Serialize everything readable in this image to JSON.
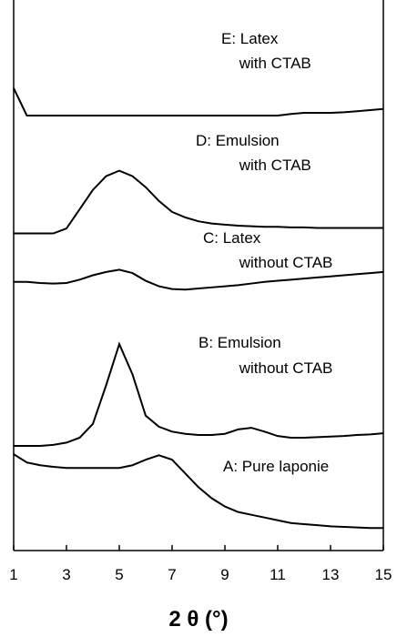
{
  "chart_data": {
    "type": "line",
    "xlabel": "2 θ (°)",
    "x": [
      1,
      1.5,
      2,
      2.5,
      3,
      3.5,
      4,
      4.5,
      5,
      5.5,
      6,
      6.5,
      7,
      7.5,
      8,
      8.5,
      9,
      9.5,
      10,
      10.5,
      11,
      11.5,
      12,
      12.5,
      13,
      13.5,
      14,
      14.5,
      15
    ],
    "xlim": [
      1,
      15
    ],
    "xticks": [
      1,
      3,
      5,
      7,
      9,
      11,
      13,
      15
    ],
    "ylim": [
      0,
      100
    ],
    "series": [
      {
        "name": "E: Latex with CTAB",
        "color": "#000000",
        "values": [
          84,
          79,
          79,
          79,
          79,
          79,
          79,
          79,
          79,
          79,
          79,
          79,
          79,
          79,
          79,
          79,
          79,
          79,
          79,
          79,
          79,
          79.3,
          79.5,
          79.5,
          79.5,
          79.6,
          79.8,
          80,
          80.2
        ]
      },
      {
        "name": "D: Emulsion with CTAB",
        "color": "#000000",
        "values": [
          57.6,
          57.6,
          57.6,
          57.6,
          58.5,
          62,
          65.5,
          68,
          69,
          68,
          66,
          63.5,
          61.5,
          60.5,
          59.8,
          59.4,
          59.2,
          59,
          58.9,
          58.8,
          58.8,
          58.7,
          58.7,
          58.6,
          58.6,
          58.6,
          58.6,
          58.6,
          58.6
        ]
      },
      {
        "name": "C: Latex without CTAB",
        "color": "#000000",
        "values": [
          48.8,
          48.8,
          48.6,
          48.5,
          48.6,
          49.2,
          50,
          50.6,
          51,
          50.4,
          49,
          48,
          47.5,
          47.4,
          47.6,
          47.8,
          48,
          48.2,
          48.5,
          48.8,
          49,
          49.2,
          49.4,
          49.6,
          49.8,
          50,
          50.2,
          50.4,
          50.6
        ]
      },
      {
        "name": "B: Emulsion without CTAB",
        "color": "#000000",
        "values": [
          19,
          19,
          19,
          19.2,
          19.6,
          20.5,
          23,
          30,
          37.5,
          32,
          24.5,
          22.5,
          21.6,
          21.2,
          21,
          21,
          21.2,
          22,
          22.3,
          21.6,
          20.8,
          20.5,
          20.5,
          20.6,
          20.7,
          20.8,
          21,
          21.1,
          21.3
        ]
      },
      {
        "name": "A: Pure laponie",
        "color": "#000000",
        "values": [
          17.5,
          16,
          15.5,
          15.2,
          15,
          15,
          15,
          15,
          15,
          15.5,
          16.5,
          17.3,
          16.5,
          14,
          11.5,
          9.5,
          8,
          7,
          6.5,
          6,
          5.5,
          5,
          4.8,
          4.6,
          4.4,
          4.3,
          4.2,
          4.1,
          4.1
        ]
      }
    ]
  }
}
